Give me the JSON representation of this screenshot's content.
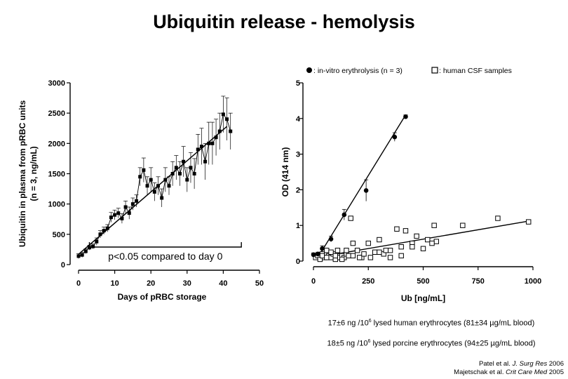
{
  "slide": {
    "title": "Ubiquitin release - hemolysis"
  },
  "chart_data": [
    {
      "type": "line",
      "xlabel": "Days of pRBC storage",
      "ylabel_line1": "Ubiquitin in plasma from pRBC units",
      "ylabel_line2": "(n = 3, ng/mL)",
      "xlim": [
        0,
        50
      ],
      "ylim": [
        0,
        3000
      ],
      "xticks": [
        "0",
        "10",
        "20",
        "30",
        "40",
        "50"
      ],
      "yticks": [
        "0",
        "500",
        "1000",
        "1500",
        "2000",
        "2500",
        "3000"
      ],
      "annotation": "p<0.05 compared to day 0",
      "annotation_range": [
        3,
        45
      ],
      "series": [
        {
          "x": [
            0,
            1,
            2,
            3,
            4,
            5,
            6,
            7,
            8,
            9,
            10,
            11,
            12,
            13,
            14,
            15,
            16,
            17,
            18,
            19,
            20,
            21,
            22,
            23,
            24,
            25,
            26,
            27,
            28,
            29,
            30,
            31,
            32,
            33,
            34,
            35,
            36,
            37,
            38,
            39,
            40,
            41,
            42
          ],
          "y": [
            140,
            160,
            220,
            280,
            300,
            380,
            500,
            560,
            600,
            780,
            820,
            850,
            760,
            950,
            850,
            1000,
            1050,
            1450,
            1560,
            1300,
            1400,
            1200,
            1300,
            1100,
            1400,
            1300,
            1500,
            1600,
            1500,
            1700,
            1400,
            1600,
            1500,
            1900,
            1950,
            1700,
            2000,
            2000,
            2100,
            2200,
            2480,
            2400,
            2200
          ],
          "err": [
            40,
            40,
            40,
            40,
            40,
            60,
            60,
            60,
            60,
            80,
            80,
            80,
            80,
            100,
            100,
            100,
            100,
            150,
            200,
            150,
            200,
            150,
            150,
            150,
            200,
            150,
            200,
            200,
            200,
            250,
            200,
            250,
            250,
            250,
            300,
            300,
            350,
            350,
            300,
            300,
            300,
            350,
            300
          ],
          "fit": [
            [
              0,
              170
            ],
            [
              41,
              2280
            ]
          ]
        }
      ]
    },
    {
      "type": "scatter",
      "xlabel": "Ub  [ng/mL]",
      "ylabel": "OD (414 nm)",
      "xlim": [
        0,
        1000
      ],
      "ylim": [
        0,
        5
      ],
      "xticks": [
        "0",
        "250",
        "500",
        "750",
        "1000"
      ],
      "yticks": [
        "0",
        "1",
        "2",
        "3",
        "4",
        "5"
      ],
      "legend": [
        "in-vitro erythrolysis (n = 3)",
        "human CSF samples"
      ],
      "legend_position": "top-right",
      "series": [
        {
          "name": "in-vitro erythrolysis (n = 3)",
          "marker": "filled-circle",
          "x": [
            0,
            20,
            40,
            80,
            140,
            240,
            370,
            420
          ],
          "y": [
            0.18,
            0.2,
            0.35,
            0.62,
            1.3,
            1.98,
            3.48,
            4.05
          ],
          "err": [
            0.05,
            0.05,
            0.08,
            0.08,
            0.15,
            0.3,
            0.12,
            0.05
          ],
          "fit": [
            [
              20,
              0.1
            ],
            [
              420,
              4.1
            ]
          ]
        },
        {
          "name": "human CSF samples",
          "marker": "open-square",
          "x": [
            10,
            20,
            30,
            40,
            50,
            60,
            70,
            80,
            90,
            100,
            110,
            120,
            130,
            140,
            150,
            160,
            180,
            200,
            220,
            250,
            280,
            300,
            320,
            350,
            380,
            400,
            420,
            450,
            470,
            500,
            520,
            550,
            560,
            680,
            840,
            980,
            40,
            60,
            80,
            100,
            130,
            150,
            170,
            180,
            210,
            230,
            260,
            300,
            330,
            350,
            400,
            450,
            540
          ],
          "y": [
            0.1,
            0.15,
            0.05,
            0.2,
            0.1,
            0.3,
            0.15,
            0.1,
            0.2,
            0.05,
            0.3,
            0.1,
            0.15,
            0.1,
            0.2,
            0.15,
            0.5,
            0.3,
            0.1,
            0.5,
            0.25,
            0.6,
            0.2,
            0.3,
            0.9,
            0.4,
            0.85,
            0.5,
            0.7,
            0.35,
            0.6,
            1.0,
            0.55,
            1.0,
            1.2,
            1.1,
            0.15,
            0.1,
            0.25,
            0.15,
            0.05,
            0.3,
            1.2,
            0.15,
            0.1,
            0.2,
            0.1,
            0.25,
            0.3,
            0.1,
            0.15,
            0.4,
            0.5
          ],
          "fit": [
            [
              10,
              0.1
            ],
            [
              980,
              1.12
            ]
          ]
        }
      ]
    }
  ],
  "notes": {
    "line1_pre": "17±6 ng /10",
    "line1_sup": "6",
    "line1_post": " lysed human erythrocytes (81±34 µg/mL blood)",
    "line2_pre": "18±5 ng /10",
    "line2_sup": "6",
    "line2_post": " lysed porcine erythrocytes (94±25 µg/mL blood)"
  },
  "citations": {
    "c1_authors": "Patel et al. ",
    "c1_journal": "J. Surg Res",
    "c1_year": " 2006",
    "c2_authors": "Majetschak et al. ",
    "c2_journal": "Crit Care Med",
    "c2_year": " 2005"
  }
}
